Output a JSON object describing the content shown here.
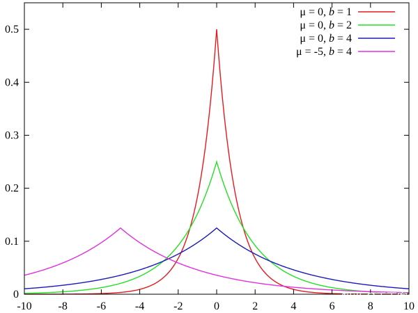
{
  "chart_data": {
    "type": "line",
    "title": "",
    "xlabel": "",
    "ylabel": "",
    "xlim": [
      -10,
      10
    ],
    "ylim": [
      0,
      0.55
    ],
    "grid": false,
    "legend_position": "top-right",
    "x_ticks": [
      -10,
      -8,
      -6,
      -4,
      -2,
      0,
      2,
      4,
      6,
      8,
      10
    ],
    "x_tick_labels": [
      "-10",
      "-8",
      "-6",
      "-4",
      "-2",
      "0",
      "2",
      "4",
      "6",
      "8",
      "10"
    ],
    "y_ticks": [
      0,
      0.1,
      0.2,
      0.3,
      0.4,
      0.5
    ],
    "y_tick_labels": [
      "0",
      "0.1",
      "0.2",
      "0.3",
      "0.4",
      "0.5"
    ],
    "series": [
      {
        "name": "μ = 0, b = 1",
        "legend_parts": {
          "mu": "0",
          "b": "1"
        },
        "color": "#e41a1c",
        "distribution": "laplace",
        "params": {
          "mu": 0,
          "b": 1
        },
        "x": [
          -10,
          -8,
          -6,
          -4,
          -3,
          -2,
          -1,
          -0.5,
          0,
          0.5,
          1,
          2,
          3,
          4,
          6,
          8,
          10
        ],
        "y": [
          2.27e-05,
          0.000168,
          0.00124,
          0.00916,
          0.0249,
          0.0677,
          0.184,
          0.303,
          0.5,
          0.303,
          0.184,
          0.0677,
          0.0249,
          0.00916,
          0.00124,
          0.000168,
          2.27e-05
        ]
      },
      {
        "name": "μ = 0, b = 2",
        "legend_parts": {
          "mu": "0",
          "b": "2"
        },
        "color": "#22e022",
        "distribution": "laplace",
        "params": {
          "mu": 0,
          "b": 2
        },
        "x": [
          -10,
          -8,
          -6,
          -4,
          -2,
          -1,
          0,
          1,
          2,
          4,
          6,
          8,
          10
        ],
        "y": [
          0.00168,
          0.00458,
          0.0124,
          0.0338,
          0.092,
          0.152,
          0.25,
          0.152,
          0.092,
          0.0338,
          0.0124,
          0.00458,
          0.00168
        ]
      },
      {
        "name": "μ = 0, b = 4",
        "legend_parts": {
          "mu": "0",
          "b": "4"
        },
        "color": "#1a1ab8",
        "distribution": "laplace",
        "params": {
          "mu": 0,
          "b": 4
        },
        "x": [
          -10,
          -8,
          -6,
          -4,
          -2,
          0,
          2,
          4,
          6,
          8,
          10
        ],
        "y": [
          0.0103,
          0.0169,
          0.0279,
          0.046,
          0.0758,
          0.125,
          0.0758,
          0.046,
          0.0279,
          0.0169,
          0.0103
        ]
      },
      {
        "name": "μ = -5, b = 4",
        "legend_parts": {
          "mu": "-5",
          "b": "4"
        },
        "color": "#e030e0",
        "distribution": "laplace",
        "params": {
          "mu": -5,
          "b": 4
        },
        "x": [
          -10,
          -8,
          -6,
          -5,
          -4,
          -2,
          0,
          2,
          4,
          6,
          8,
          10
        ],
        "y": [
          0.0358,
          0.0591,
          0.0973,
          0.125,
          0.0973,
          0.0591,
          0.0358,
          0.0217,
          0.0132,
          0.008,
          0.00485,
          0.00294
        ]
      }
    ]
  },
  "watermark": "知乎 @天下客"
}
